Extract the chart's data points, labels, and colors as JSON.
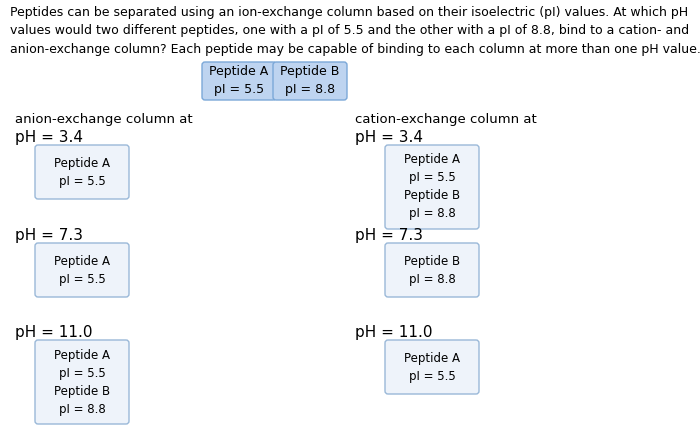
{
  "title_text": "Peptides can be separated using an ion-exchange column based on their isoelectric (pI) values. At which pH\nvalues would two different peptides, one with a pI of 5.5 and the other with a pI of 8.8, bind to a cation- and\nanion-exchange column? Each peptide may be capable of binding to each column at more than one pH value.",
  "peptide_a_label": "Peptide A\npI = 5.5",
  "peptide_b_label": "Peptide B\npI = 8.8",
  "box_color_ab": "#bed4f0",
  "box_color_white": "#eef3fa",
  "anion_col_title": "anion-exchange column at",
  "cation_col_title": "cation-exchange column at",
  "ph_values": [
    "pH = 3.4",
    "pH = 7.3",
    "pH = 11.0"
  ],
  "anion_contents": [
    [
      "Peptide A\npI = 5.5"
    ],
    [
      "Peptide A\npI = 5.5"
    ],
    [
      "Peptide A\npI = 5.5",
      "Peptide B\npI = 8.8"
    ]
  ],
  "cation_contents": [
    [
      "Peptide A\npI = 5.5",
      "Peptide B\npI = 8.8"
    ],
    [
      "Peptide B\npI = 8.8"
    ],
    [
      "Peptide A\npI = 5.5"
    ]
  ],
  "bg_color": "#ffffff",
  "text_color": "#000000",
  "font_size_title": 9.0,
  "font_size_col_title": 9.5,
  "font_size_ph": 11.0,
  "font_size_peptide_box": 8.5,
  "font_size_ref_box": 9.0
}
